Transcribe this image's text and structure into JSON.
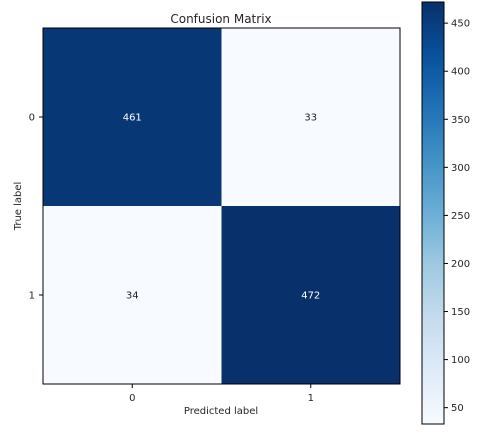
{
  "chart_data": {
    "type": "heatmap",
    "title": "Confusion Matrix",
    "xlabel": "Predicted label",
    "ylabel": "True label",
    "x_categories": [
      "0",
      "1"
    ],
    "y_categories": [
      "0",
      "1"
    ],
    "values": [
      [
        461,
        33
      ],
      [
        34,
        472
      ]
    ],
    "colormap": "Blues",
    "color_range": [
      33,
      472
    ],
    "colorbar": {
      "ticks": [
        50,
        100,
        150,
        200,
        250,
        300,
        350,
        400,
        450
      ]
    },
    "colors": {
      "low": "#f7fbff",
      "high": "#08306b",
      "text_on_dark": "#ffffff",
      "text_on_light": "#262626"
    },
    "grid": false
  }
}
